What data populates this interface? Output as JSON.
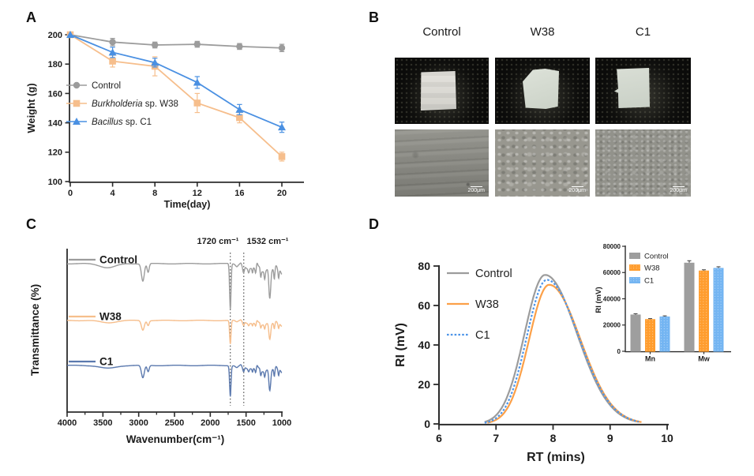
{
  "panels": {
    "a": "A",
    "b": "B",
    "c": "C",
    "d": "D"
  },
  "colors": {
    "axis": "#2b2b2b",
    "text": "#1c1c1c",
    "control": "#9C9C9C",
    "w38_light": "#F6BE8C",
    "c1_bright": "#4A90E2",
    "c1_muted": "#5B79AE",
    "w38_strong": "#FCA048",
    "c1_dotted": "#4D94E8",
    "bar_control": "#9E9E9E",
    "bar_w38": "#FF9D2E",
    "bar_c1": "#74B5F2",
    "error_dark": "#3d3d3d"
  },
  "panel_b": {
    "columns": [
      "Control",
      "W38",
      "C1"
    ],
    "scale_label": "200μm"
  },
  "chart_data": [
    {
      "id": "weight-loss",
      "type": "line",
      "xlabel": "Time(day)",
      "ylabel": "Weight (g)",
      "x": [
        0,
        4,
        8,
        12,
        16,
        20
      ],
      "xticks": [
        0,
        4,
        8,
        12,
        16,
        20
      ],
      "yticks": [
        100,
        120,
        140,
        160,
        180,
        200
      ],
      "xlim": [
        0,
        22
      ],
      "ylim": [
        100,
        200
      ],
      "legend_position": "inside-left",
      "series": [
        {
          "name": "Control",
          "name_italic": "",
          "marker": "circle",
          "color_key": "control",
          "values": [
            200,
            195,
            193,
            193.5,
            192,
            191
          ],
          "errors": [
            0,
            2.5,
            2,
            2,
            2,
            2.5
          ]
        },
        {
          "name": " sp. W38",
          "name_italic": "Burkholderia",
          "marker": "square",
          "color_key": "w38_light",
          "values": [
            200,
            182,
            178.5,
            153.5,
            143.5,
            117
          ],
          "errors": [
            0,
            4,
            6.5,
            6.5,
            3.5,
            3
          ]
        },
        {
          "name": " sp. C1",
          "name_italic": "Bacillus",
          "marker": "triangle",
          "color_key": "c1_bright",
          "values": [
            200,
            188,
            181,
            167.5,
            149,
            137
          ],
          "errors": [
            0,
            3.5,
            3,
            4,
            3.5,
            3.5
          ]
        }
      ]
    },
    {
      "id": "ftir-spectra",
      "type": "line",
      "xlabel": "Wavenumber(cm⁻¹)",
      "ylabel": "Transmittance (%)",
      "xticks": [
        4000,
        3500,
        3000,
        2500,
        2000,
        1500,
        1000
      ],
      "xlim": [
        4000,
        1000
      ],
      "grid": false,
      "annotations": [
        {
          "text": "1720 cm⁻¹",
          "wavenumber": 1720
        },
        {
          "text": "1532 cm⁻¹",
          "wavenumber": 1532
        }
      ],
      "dips": [
        {
          "c": 3430,
          "w": 110,
          "d": 5
        },
        {
          "c": 2942,
          "w": 20,
          "d": 22
        },
        {
          "c": 2868,
          "w": 14,
          "d": 11
        },
        {
          "c": 1720,
          "w": 10,
          "d": 58
        },
        {
          "c": 1625,
          "w": 14,
          "d": 4
        },
        {
          "c": 1532,
          "w": 10,
          "d": 5
        },
        {
          "c": 1463,
          "w": 11,
          "d": 11
        },
        {
          "c": 1410,
          "w": 7,
          "d": 8
        },
        {
          "c": 1365,
          "w": 8,
          "d": 10
        },
        {
          "c": 1295,
          "w": 8,
          "d": 13
        },
        {
          "c": 1240,
          "w": 9,
          "d": 14
        },
        {
          "c": 1170,
          "w": 13,
          "d": 34
        },
        {
          "c": 1105,
          "w": 7,
          "d": 12
        },
        {
          "c": 1045,
          "w": 7,
          "d": 9
        }
      ],
      "series": [
        {
          "name": "Control",
          "color_key": "control",
          "baseline": 334,
          "scale": 1.0,
          "carbonyl_depth": 58
        },
        {
          "name": "W38",
          "color_key": "w38_light",
          "baseline": 406,
          "scale": 0.55,
          "carbonyl_depth": 30
        },
        {
          "name": "C1",
          "color_key": "c1_muted",
          "baseline": 463,
          "scale": 0.72,
          "carbonyl_depth": 39
        }
      ]
    },
    {
      "id": "gpc-chromatogram",
      "type": "line",
      "xlabel": "RT (mins)",
      "ylabel": "RI (mV)",
      "xticks": [
        6,
        7,
        8,
        9,
        10
      ],
      "yticks": [
        0,
        20,
        40,
        60,
        80
      ],
      "xlim": [
        6,
        10
      ],
      "ylim": [
        0,
        80
      ],
      "series": [
        {
          "name": "Control",
          "color_key": "control",
          "dash": "",
          "peak_rt": 7.86,
          "peak_ri": 75.5,
          "sigma_left": 0.36,
          "sigma_right": 0.56,
          "start": 6.8,
          "end": 9.5
        },
        {
          "name": "W38",
          "color_key": "w38_strong",
          "dash": "",
          "peak_rt": 7.93,
          "peak_ri": 70.5,
          "sigma_left": 0.35,
          "sigma_right": 0.55,
          "start": 6.85,
          "end": 9.55
        },
        {
          "name": "C1",
          "color_key": "c1_dotted",
          "dash": "2.6,2.2",
          "peak_rt": 7.89,
          "peak_ri": 73,
          "sigma_left": 0.35,
          "sigma_right": 0.56,
          "start": 6.8,
          "end": 9.5
        }
      ]
    },
    {
      "id": "molecular-weight-inset",
      "type": "bar",
      "ylabel": "RI (mV)",
      "categories": [
        "Mn",
        "Mw"
      ],
      "yticks": [
        0,
        20000,
        40000,
        60000,
        80000
      ],
      "ylim": [
        0,
        80000
      ],
      "series": [
        {
          "name": "Control",
          "color_key": "bar_control",
          "pattern": false,
          "values": [
            28000,
            67500
          ],
          "errors": [
            600,
            1500
          ]
        },
        {
          "name": "W38",
          "color_key": "bar_w38",
          "pattern": true,
          "values": [
            24500,
            61500
          ],
          "errors": [
            400,
            600
          ]
        },
        {
          "name": "C1",
          "color_key": "bar_c1",
          "pattern": true,
          "values": [
            26500,
            63500
          ],
          "errors": [
            500,
            900
          ]
        }
      ]
    }
  ]
}
